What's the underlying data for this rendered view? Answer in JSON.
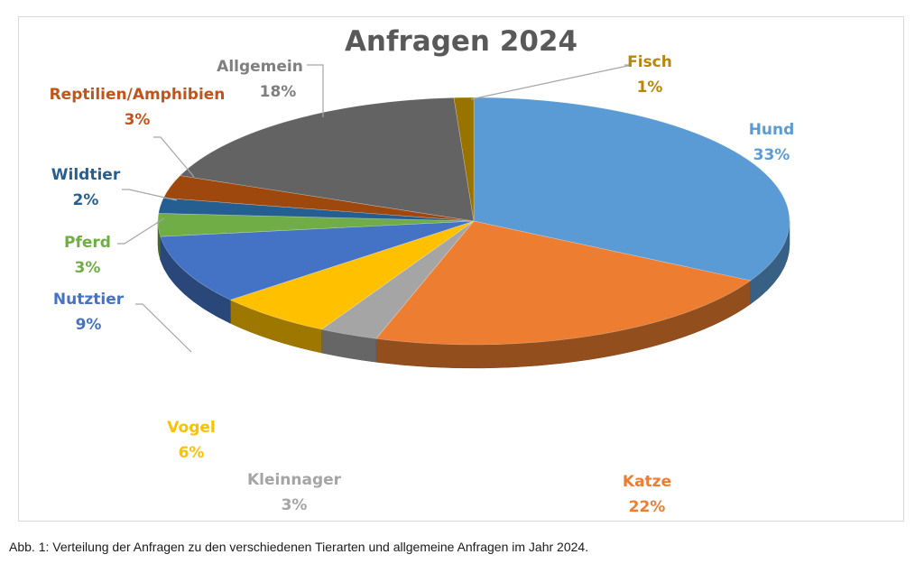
{
  "chart_data": {
    "type": "pie",
    "title": "Anfragen 2024",
    "slices": [
      {
        "label": "Hund",
        "value": 33,
        "display": "33%",
        "color": "#5b9bd5"
      },
      {
        "label": "Katze",
        "value": 22,
        "display": "22%",
        "color": "#ed7d31"
      },
      {
        "label": "Kleinnager",
        "value": 3,
        "display": "3%",
        "color": "#a5a5a5"
      },
      {
        "label": "Vogel",
        "value": 6,
        "display": "6%",
        "color": "#ffc000"
      },
      {
        "label": "Nutztier",
        "value": 9,
        "display": "9%",
        "color": "#4472c4"
      },
      {
        "label": "Pferd",
        "value": 3,
        "display": "3%",
        "color": "#70ad47"
      },
      {
        "label": "Wildtier",
        "value": 2,
        "display": "2%",
        "color": "#255e91"
      },
      {
        "label": "Reptilien/Amphibien",
        "value": 3,
        "display": "3%",
        "color": "#9e480e"
      },
      {
        "label": "Allgemein",
        "value": 18,
        "display": "18%",
        "color": "#636363"
      },
      {
        "label": "Fisch",
        "value": 1,
        "display": "1%",
        "color": "#997300"
      }
    ],
    "style": "3d-tilted",
    "legend": "none"
  },
  "caption": "Abb. 1: Verteilung der Anfragen zu den verschiedenen Tierarten und allgemeine Anfragen im Jahr 2024."
}
